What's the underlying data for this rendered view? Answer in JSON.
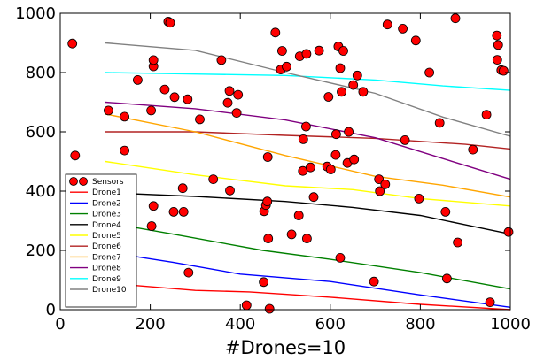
{
  "chart_data": {
    "type": "scatter",
    "title": "",
    "xlabel": "#Drones=10",
    "ylabel": "",
    "xlim": [
      0,
      1000
    ],
    "ylim": [
      0,
      1000
    ],
    "xticks": [
      0,
      200,
      400,
      600,
      800,
      1000
    ],
    "yticks": [
      0,
      200,
      400,
      600,
      800,
      1000
    ],
    "grid": false,
    "legend_position": "bottom-left",
    "sensors": {
      "name": "Sensors",
      "color": "#ff0000",
      "points": [
        [
          27,
          898
        ],
        [
          33,
          520
        ],
        [
          107,
          672
        ],
        [
          143,
          651
        ],
        [
          143,
          537
        ],
        [
          148,
          440
        ],
        [
          172,
          775
        ],
        [
          202,
          672
        ],
        [
          207,
          821
        ],
        [
          207,
          842
        ],
        [
          207,
          350
        ],
        [
          203,
          282
        ],
        [
          232,
          743
        ],
        [
          240,
          972
        ],
        [
          244,
          968
        ],
        [
          252,
          330
        ],
        [
          254,
          717
        ],
        [
          272,
          410
        ],
        [
          274,
          330
        ],
        [
          283,
          710
        ],
        [
          285,
          125
        ],
        [
          310,
          642
        ],
        [
          340,
          440
        ],
        [
          358,
          842
        ],
        [
          372,
          698
        ],
        [
          376,
          738
        ],
        [
          377,
          402
        ],
        [
          392,
          664
        ],
        [
          395,
          725
        ],
        [
          414,
          15
        ],
        [
          452,
          93
        ],
        [
          453,
          332
        ],
        [
          457,
          353
        ],
        [
          460,
          365
        ],
        [
          461,
          515
        ],
        [
          462,
          240
        ],
        [
          465,
          3
        ],
        [
          478,
          935
        ],
        [
          490,
          810
        ],
        [
          493,
          873
        ],
        [
          503,
          820
        ],
        [
          514,
          254
        ],
        [
          530,
          318
        ],
        [
          532,
          855
        ],
        [
          539,
          468
        ],
        [
          540,
          575
        ],
        [
          546,
          618
        ],
        [
          547,
          863
        ],
        [
          548,
          240
        ],
        [
          556,
          480
        ],
        [
          563,
          380
        ],
        [
          575,
          874
        ],
        [
          593,
          483
        ],
        [
          596,
          718
        ],
        [
          601,
          473
        ],
        [
          612,
          522
        ],
        [
          613,
          592
        ],
        [
          618,
          888
        ],
        [
          622,
          815
        ],
        [
          622,
          175
        ],
        [
          625,
          735
        ],
        [
          629,
          873
        ],
        [
          638,
          495
        ],
        [
          641,
          600
        ],
        [
          651,
          758
        ],
        [
          653,
          507
        ],
        [
          660,
          790
        ],
        [
          673,
          735
        ],
        [
          697,
          95
        ],
        [
          708,
          440
        ],
        [
          710,
          400
        ],
        [
          722,
          423
        ],
        [
          727,
          962
        ],
        [
          761,
          948
        ],
        [
          766,
          572
        ],
        [
          790,
          908
        ],
        [
          797,
          375
        ],
        [
          820,
          800
        ],
        [
          843,
          630
        ],
        [
          856,
          330
        ],
        [
          859,
          105
        ],
        [
          878,
          983
        ],
        [
          883,
          227
        ],
        [
          917,
          540
        ],
        [
          947,
          658
        ],
        [
          955,
          25
        ],
        [
          970,
          925
        ],
        [
          973,
          893
        ],
        [
          971,
          843
        ],
        [
          980,
          808
        ],
        [
          985,
          806
        ],
        [
          996,
          262
        ]
      ]
    },
    "series": [
      {
        "name": "Drone1",
        "color": "#ff0000",
        "points": [
          [
            100,
            90
          ],
          [
            300,
            65
          ],
          [
            420,
            60
          ],
          [
            500,
            52
          ],
          [
            600,
            42
          ],
          [
            800,
            18
          ],
          [
            1000,
            0
          ]
        ]
      },
      {
        "name": "Drone2",
        "color": "#0000ff",
        "points": [
          [
            100,
            195
          ],
          [
            250,
            160
          ],
          [
            400,
            120
          ],
          [
            600,
            95
          ],
          [
            800,
            50
          ],
          [
            1000,
            8
          ]
        ]
      },
      {
        "name": "Drone3",
        "color": "#008000",
        "points": [
          [
            100,
            295
          ],
          [
            250,
            255
          ],
          [
            450,
            200
          ],
          [
            600,
            170
          ],
          [
            800,
            125
          ],
          [
            1000,
            70
          ]
        ]
      },
      {
        "name": "Drone4",
        "color": "#000000",
        "points": [
          [
            100,
            395
          ],
          [
            300,
            382
          ],
          [
            500,
            365
          ],
          [
            650,
            345
          ],
          [
            800,
            318
          ],
          [
            1000,
            255
          ]
        ]
      },
      {
        "name": "Drone5",
        "color": "#ffff00",
        "points": [
          [
            100,
            500
          ],
          [
            300,
            455
          ],
          [
            500,
            418
          ],
          [
            650,
            405
          ],
          [
            800,
            375
          ],
          [
            1000,
            350
          ]
        ]
      },
      {
        "name": "Drone6",
        "color": "#b22222",
        "points": [
          [
            100,
            600
          ],
          [
            300,
            600
          ],
          [
            500,
            588
          ],
          [
            700,
            578
          ],
          [
            900,
            558
          ],
          [
            1000,
            542
          ]
        ]
      },
      {
        "name": "Drone7",
        "color": "#ffa500",
        "points": [
          [
            100,
            660
          ],
          [
            300,
            600
          ],
          [
            500,
            520
          ],
          [
            700,
            450
          ],
          [
            850,
            420
          ],
          [
            1000,
            380
          ]
        ]
      },
      {
        "name": "Drone8",
        "color": "#800080",
        "points": [
          [
            100,
            700
          ],
          [
            300,
            678
          ],
          [
            500,
            640
          ],
          [
            700,
            580
          ],
          [
            850,
            510
          ],
          [
            1000,
            440
          ]
        ]
      },
      {
        "name": "Drone9",
        "color": "#00ffff",
        "points": [
          [
            100,
            800
          ],
          [
            300,
            795
          ],
          [
            500,
            790
          ],
          [
            700,
            775
          ],
          [
            850,
            755
          ],
          [
            1000,
            740
          ]
        ]
      },
      {
        "name": "Drone10",
        "color": "#808080",
        "points": [
          [
            100,
            900
          ],
          [
            300,
            875
          ],
          [
            500,
            800
          ],
          [
            700,
            730
          ],
          [
            850,
            650
          ],
          [
            1000,
            585
          ]
        ]
      }
    ]
  }
}
